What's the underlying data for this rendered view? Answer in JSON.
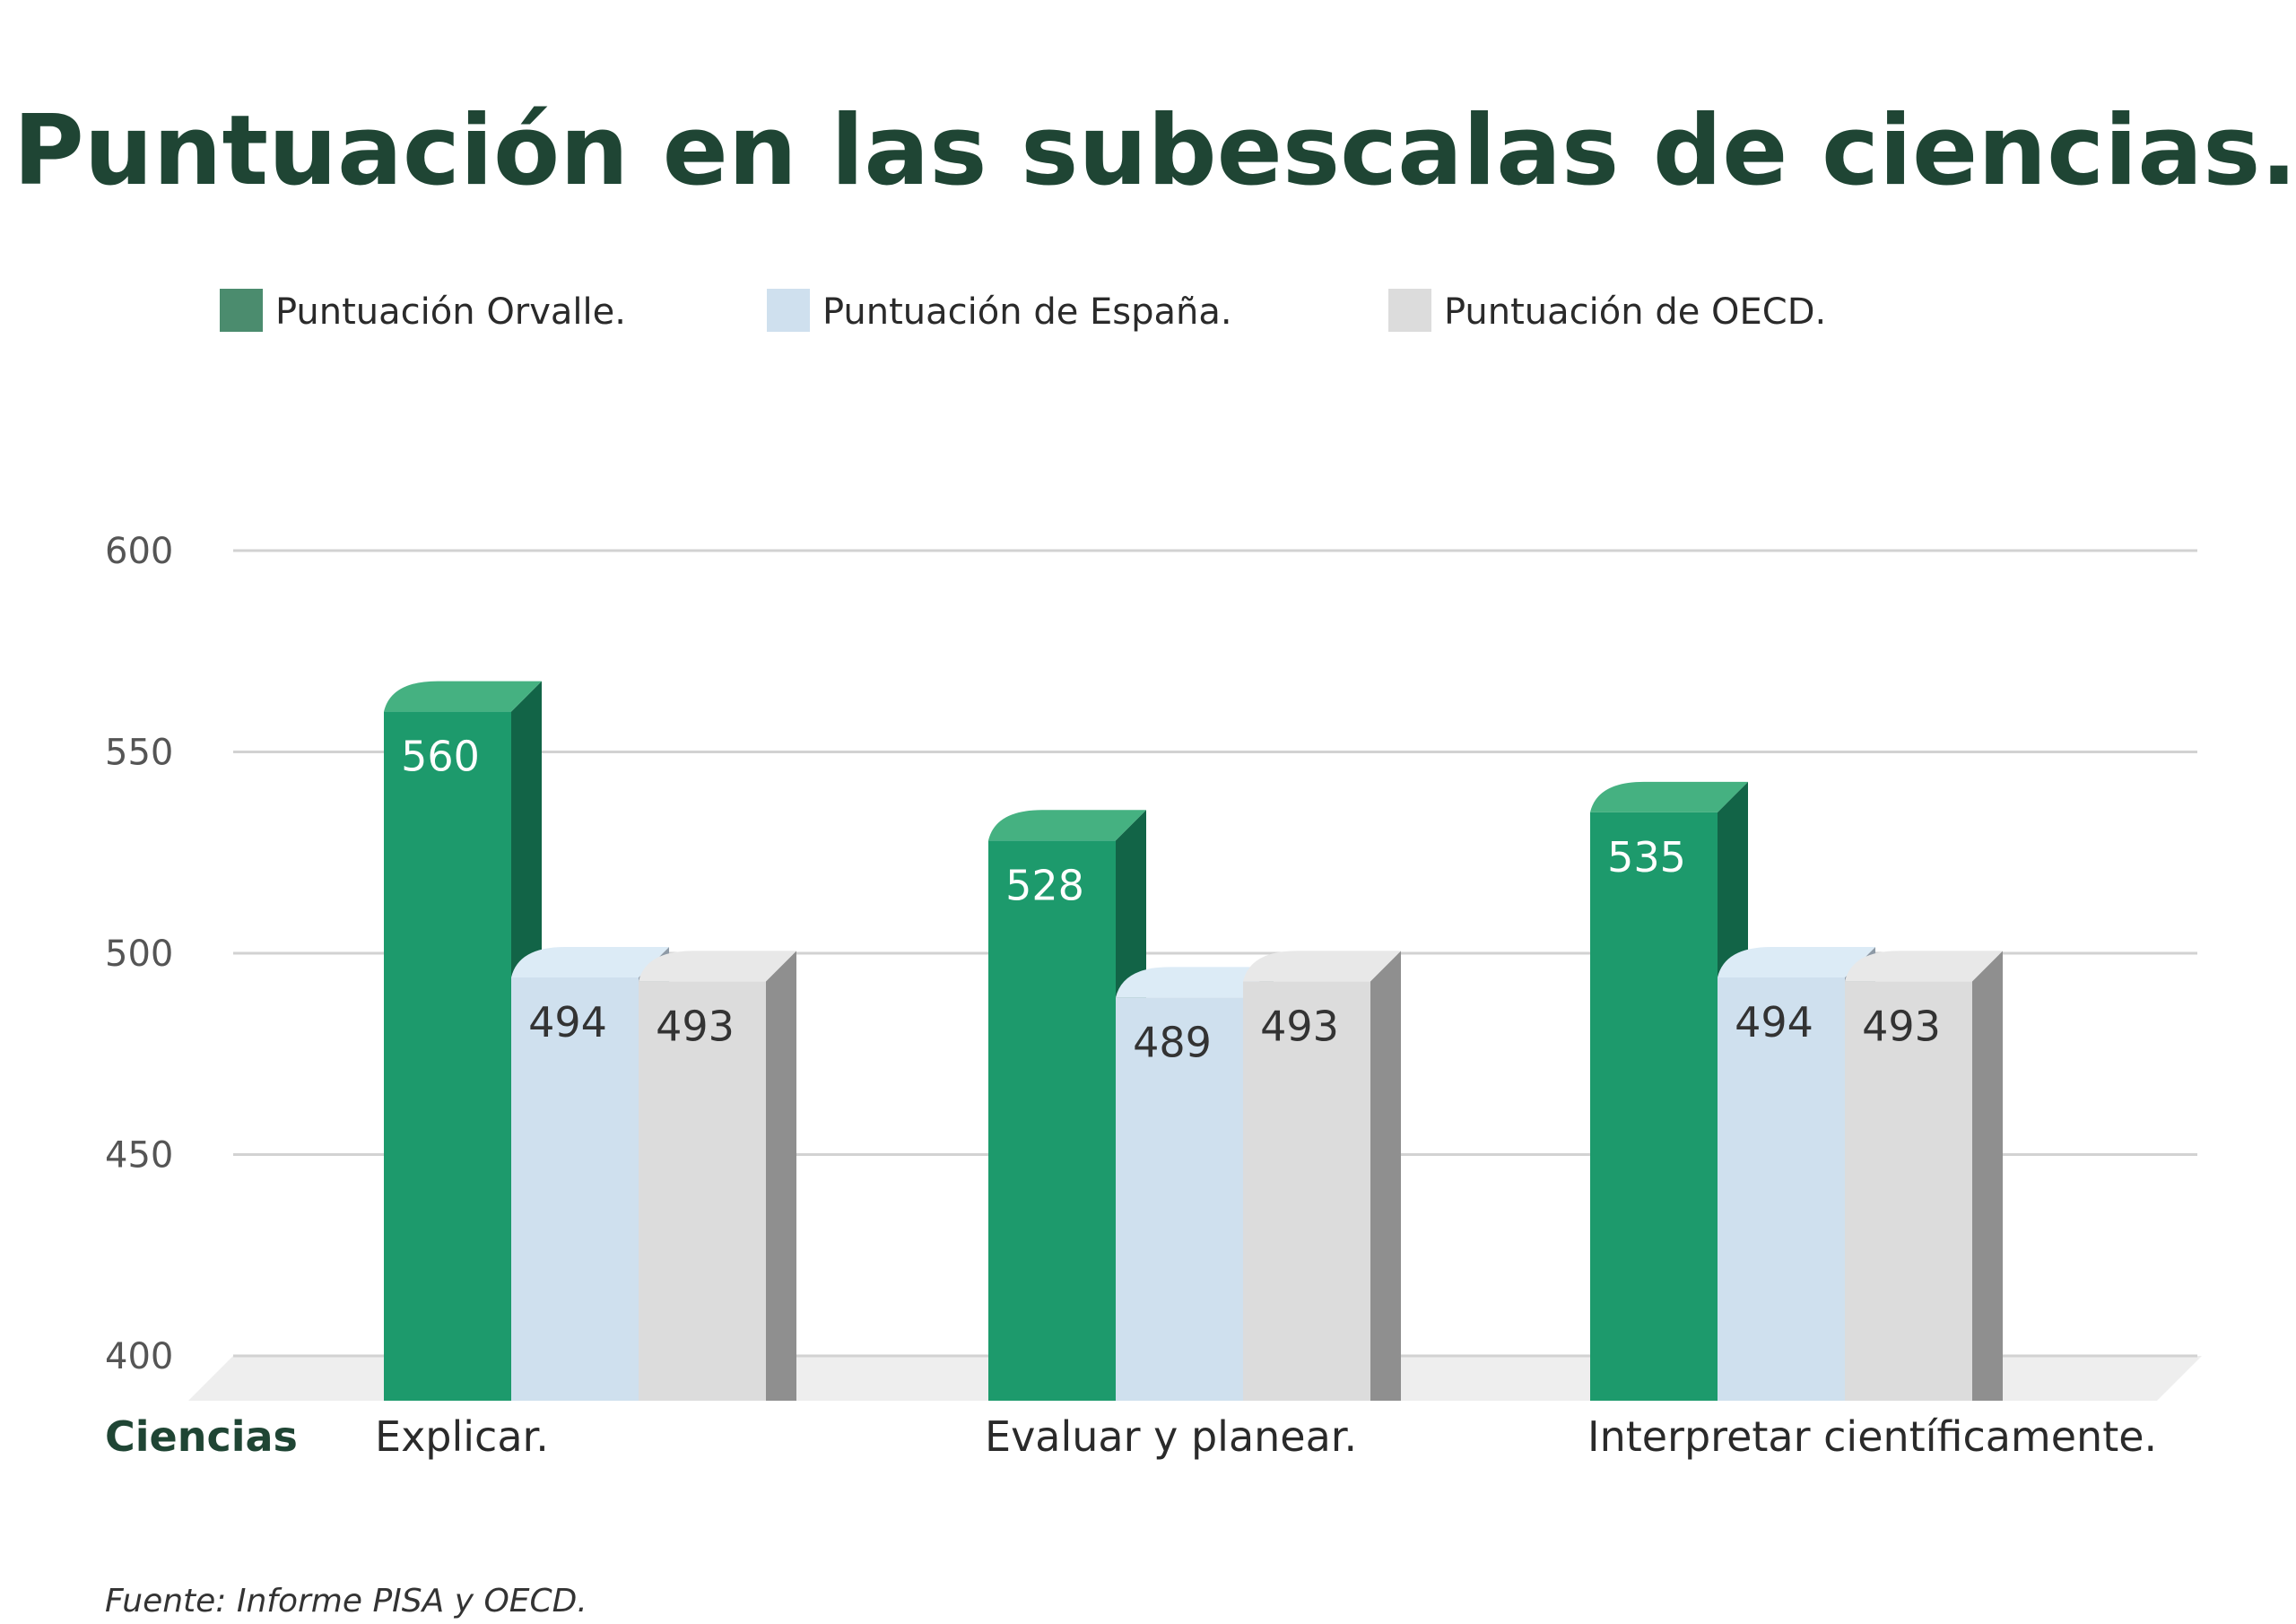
{
  "chart_data": {
    "type": "bar",
    "title": "Puntuación en las subescalas de ciencias.",
    "group_label": "Ciencias",
    "categories": [
      "Explicar.",
      "Evaluar y planear.",
      "Interpretar científicamente."
    ],
    "series": [
      {
        "name": "Puntuación Orvalle.",
        "values": [
          560,
          528,
          535
        ],
        "color": "#1d9a6c",
        "side_color": "#126447",
        "top_color": "#45b181"
      },
      {
        "name": "Puntuación de España.",
        "values": [
          494,
          489,
          494
        ],
        "color": "#cfe0ee",
        "side_color": "#8e9aa6",
        "top_color": "#dcebf6"
      },
      {
        "name": "Puntuación de OECD.",
        "values": [
          493,
          493,
          493
        ],
        "color": "#dcdcdc",
        "side_color": "#8f8f8f",
        "top_color": "#e8e8e8"
      }
    ],
    "y_ticks": [
      400,
      450,
      500,
      550,
      600
    ],
    "ylim": [
      400,
      600
    ],
    "grid": true,
    "legend_position": "top-left"
  },
  "source": "Fuente: Informe PISA y OECD."
}
